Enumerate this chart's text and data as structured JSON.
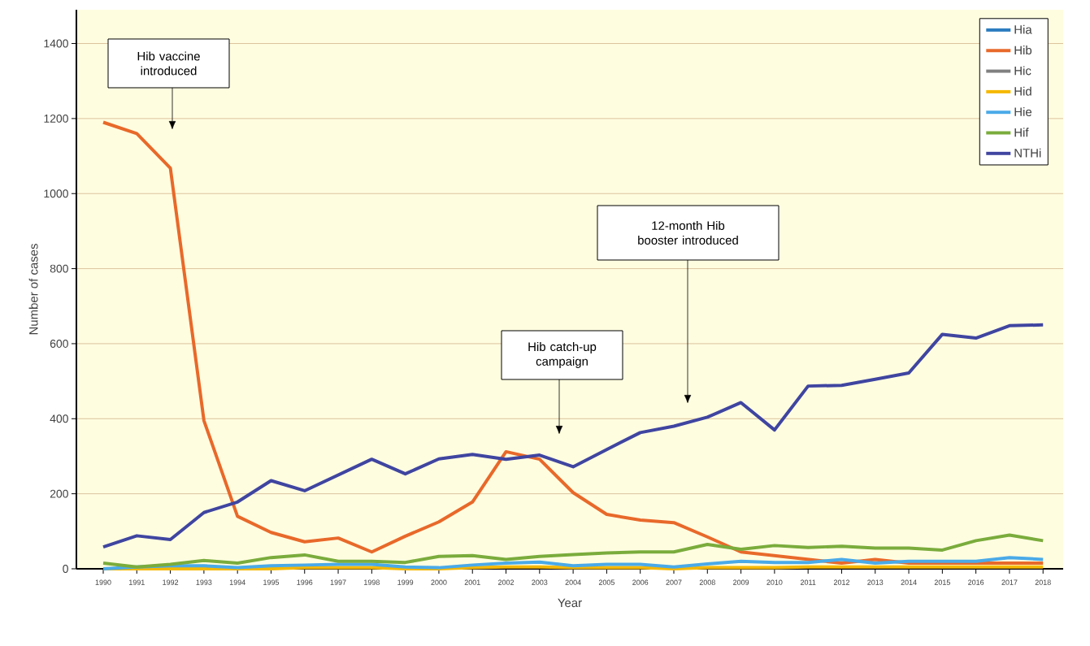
{
  "chart_data": {
    "type": "line",
    "xlabel": "Year",
    "ylabel": "Number of cases",
    "categories": [
      "1990",
      "1991",
      "1992",
      "1993",
      "1994",
      "1995",
      "1996",
      "1997",
      "1998",
      "1999",
      "2000",
      "2001",
      "2002",
      "2003",
      "2004",
      "2005",
      "2006",
      "2007",
      "2008",
      "2009",
      "2010",
      "2011",
      "2012",
      "2013",
      "2014",
      "2015",
      "2016",
      "2017",
      "2018"
    ],
    "ylim": [
      0,
      1490
    ],
    "yticks": [
      0,
      200,
      400,
      600,
      800,
      1000,
      1200,
      1400
    ],
    "grid": "y",
    "legend": "top right",
    "line_style": "solid",
    "series": [
      {
        "name": "Hia",
        "color": "#2d7dc0",
        "values": [
          null,
          null,
          null,
          null,
          null,
          null,
          null,
          null,
          null,
          null,
          null,
          null,
          null,
          null,
          null,
          null,
          null,
          null,
          null,
          null,
          null,
          null,
          null,
          null,
          null,
          null,
          null,
          null,
          null
        ]
      },
      {
        "name": "Hib",
        "color": "#e8692a",
        "values": [
          1190,
          1160,
          1068,
          395,
          140,
          97,
          72,
          82,
          45,
          87,
          125,
          178,
          312,
          292,
          203,
          145,
          130,
          123,
          85,
          45,
          35,
          25,
          15,
          25,
          15,
          15,
          15,
          15,
          15
        ]
      },
      {
        "name": "Hic",
        "color": "#808080",
        "values": [
          null,
          null,
          null,
          null,
          null,
          null,
          null,
          null,
          null,
          null,
          null,
          null,
          null,
          null,
          null,
          null,
          null,
          null,
          null,
          null,
          null,
          null,
          null,
          null,
          null,
          null,
          null,
          null,
          null
        ]
      },
      {
        "name": "Hid",
        "color": "#f5b800",
        "values": [
          0,
          0,
          0,
          0,
          0,
          0,
          3,
          3,
          3,
          0,
          0,
          3,
          5,
          5,
          3,
          3,
          3,
          0,
          3,
          3,
          3,
          5,
          5,
          5,
          5,
          5,
          5,
          5,
          5
        ]
      },
      {
        "name": "Hie",
        "color": "#4aaae8",
        "values": [
          0,
          5,
          8,
          8,
          3,
          8,
          10,
          12,
          12,
          5,
          3,
          10,
          15,
          18,
          8,
          12,
          12,
          5,
          13,
          20,
          17,
          17,
          25,
          15,
          20,
          20,
          20,
          30,
          25
        ]
      },
      {
        "name": "Hif",
        "color": "#7aac3c",
        "values": [
          15,
          5,
          12,
          22,
          15,
          30,
          37,
          20,
          20,
          17,
          33,
          35,
          25,
          33,
          38,
          42,
          45,
          45,
          65,
          52,
          62,
          57,
          60,
          55,
          55,
          50,
          75,
          90,
          75
        ]
      },
      {
        "name": "NTHi",
        "color": "#3f45a0",
        "values": [
          58,
          88,
          78,
          150,
          178,
          235,
          208,
          250,
          292,
          253,
          293,
          305,
          292,
          303,
          272,
          318,
          363,
          380,
          404,
          443,
          370,
          487,
          489,
          505,
          522,
          625,
          615,
          648,
          650
        ]
      }
    ],
    "annotations": [
      "Hib vaccine introduced",
      "Hib catch-up campaign",
      "12-month Hib booster introduced"
    ]
  }
}
